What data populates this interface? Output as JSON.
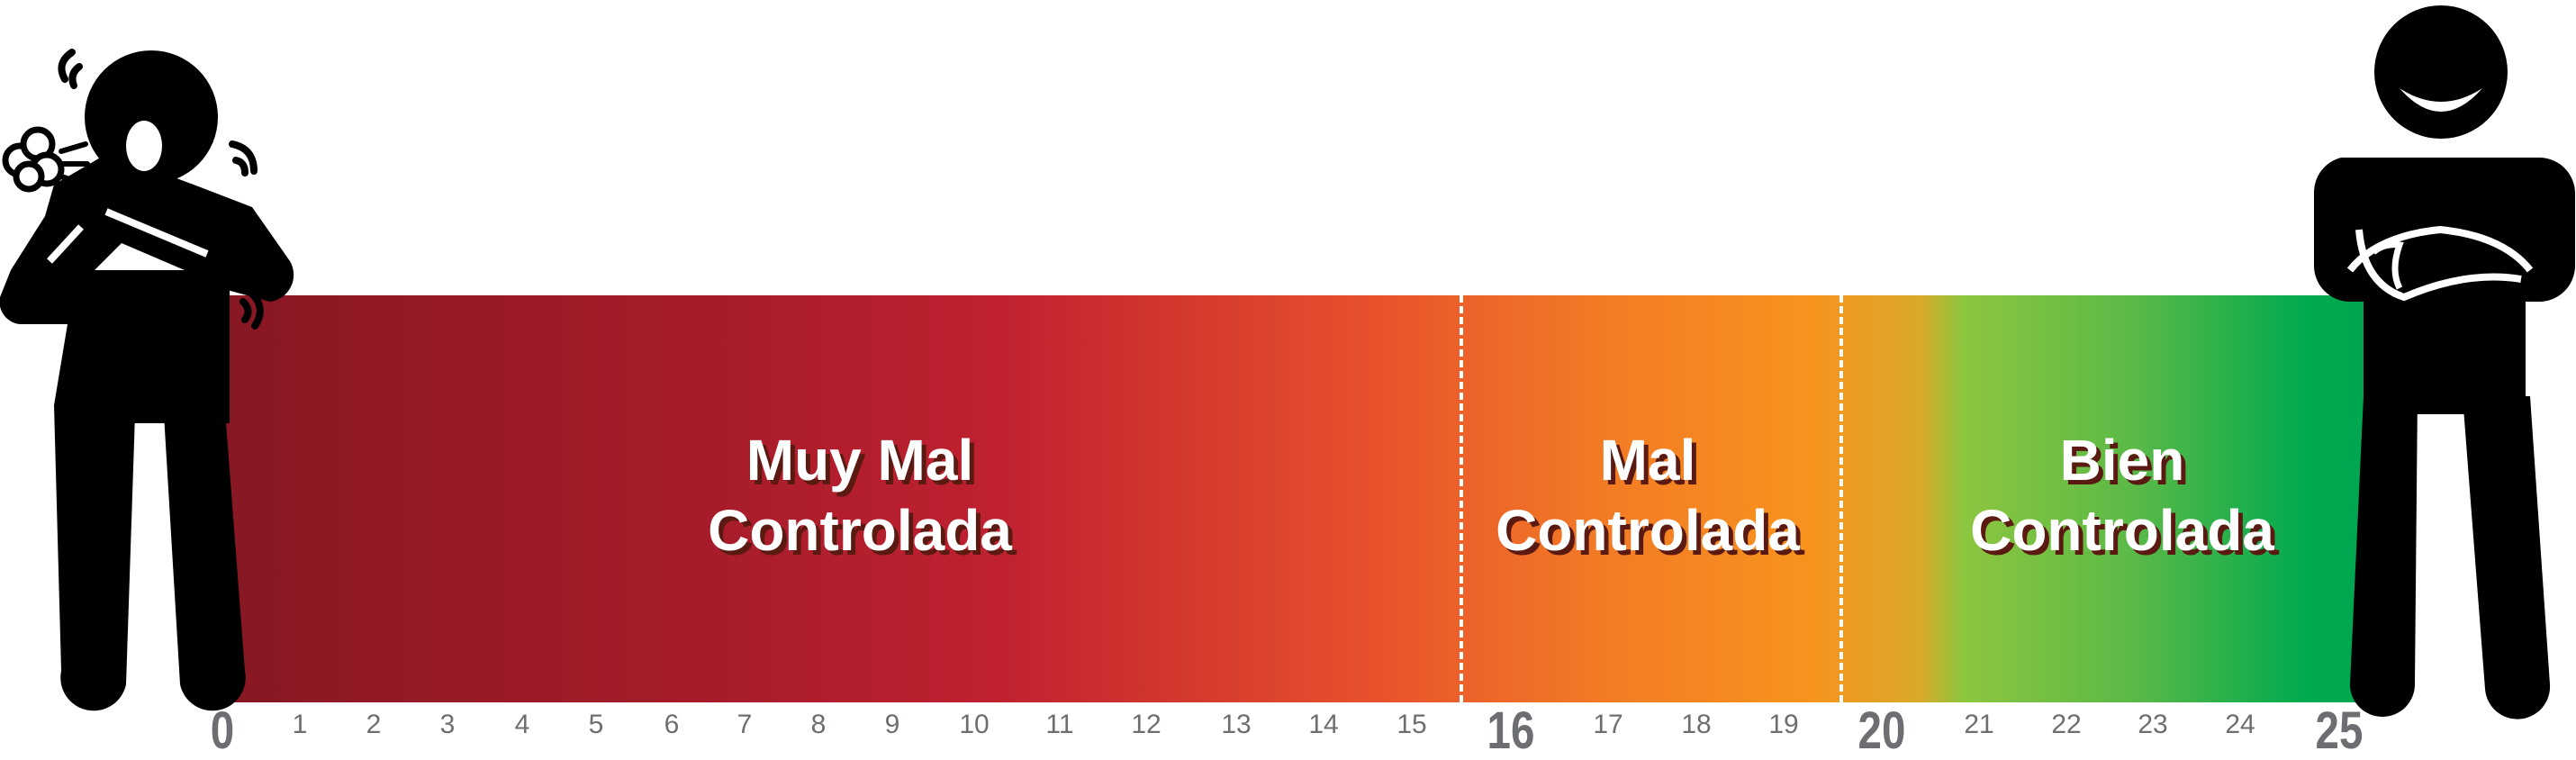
{
  "zones": [
    {
      "name": "muy-mal",
      "line1": "Muy Mal",
      "line2": "Controlada",
      "range": [
        0,
        15
      ],
      "color": "#a61c2a"
    },
    {
      "name": "mal",
      "line1": "Mal",
      "line2": "Controlada",
      "range": [
        16,
        19
      ],
      "color": "#f7941d"
    },
    {
      "name": "bien",
      "line1": "Bien",
      "line2": "Controlada",
      "range": [
        20,
        25
      ],
      "color": "#00a651"
    }
  ],
  "ticks": [
    "0",
    "1",
    "2",
    "3",
    "4",
    "5",
    "6",
    "7",
    "8",
    "9",
    "10",
    "11",
    "12",
    "13",
    "14",
    "15",
    "16",
    "17",
    "18",
    "19",
    "20",
    "21",
    "22",
    "23",
    "24",
    "25"
  ],
  "major_ticks": [
    "0",
    "16",
    "20",
    "25"
  ],
  "thresholds": [
    16,
    20
  ],
  "icons": {
    "left": "sick-coughing-person-icon",
    "right": "happy-person-icon"
  }
}
